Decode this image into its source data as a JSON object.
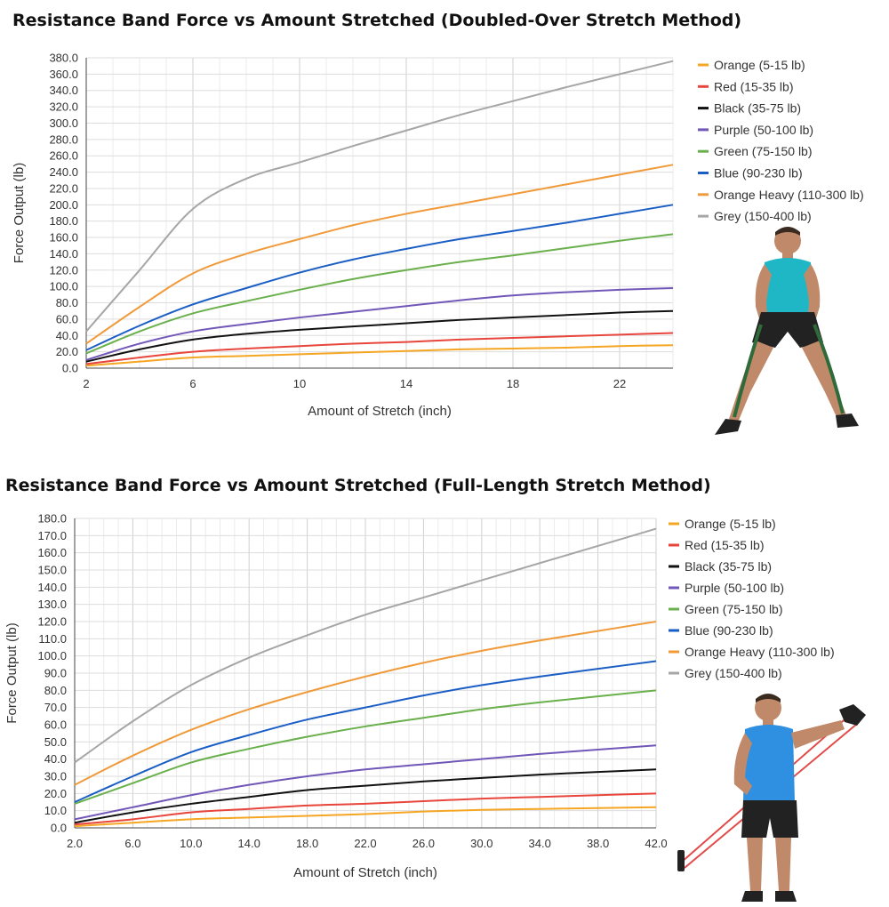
{
  "chart_data": [
    {
      "type": "line",
      "title": "Resistance Band Force vs Amount Stretched  (Doubled-Over Stretch Method)",
      "xlabel": "Amount of Stretch (inch)",
      "ylabel": "Force Output (lb)",
      "xlim": [
        2,
        24
      ],
      "ylim": [
        0,
        380
      ],
      "xticks": [
        2,
        6,
        10,
        14,
        18,
        22
      ],
      "xtick_labels": [
        "2",
        "6",
        "10",
        "14",
        "18",
        "22"
      ],
      "yticks": [
        0,
        20,
        40,
        60,
        80,
        100,
        120,
        140,
        160,
        180,
        200,
        220,
        240,
        260,
        280,
        300,
        320,
        340,
        360,
        380
      ],
      "ytick_labels": [
        "0.0",
        "20.0",
        "40.0",
        "60.0",
        "80.0",
        "100.0",
        "120.0",
        "140.0",
        "160.0",
        "180.0",
        "200.0",
        "220.0",
        "240.0",
        "260.0",
        "280.0",
        "300.0",
        "320.0",
        "340.0",
        "360.0",
        "380.0"
      ],
      "grid": true,
      "legend_position": "right",
      "x": [
        2,
        4,
        6,
        8,
        10,
        12,
        14,
        16,
        18,
        20,
        22,
        24
      ],
      "series": [
        {
          "name": "Orange (5-15 lb)",
          "color": "#f5a623",
          "values": [
            3,
            8,
            13,
            15,
            17,
            19,
            21,
            23,
            24,
            25,
            27,
            28
          ]
        },
        {
          "name": "Red (15-35 lb)",
          "color": "#e8453c",
          "values": [
            5,
            13,
            20,
            24,
            27,
            30,
            32,
            35,
            37,
            39,
            41,
            43
          ]
        },
        {
          "name": "Black (35-75 lb)",
          "color": "#111111",
          "values": [
            8,
            23,
            35,
            42,
            47,
            51,
            55,
            59,
            62,
            65,
            68,
            70
          ]
        },
        {
          "name": "Purple (50-100 lb)",
          "color": "#7158b8",
          "values": [
            10,
            30,
            45,
            54,
            62,
            69,
            76,
            83,
            89,
            93,
            96,
            98
          ]
        },
        {
          "name": "Green (75-150 lb)",
          "color": "#6ab04c",
          "values": [
            18,
            45,
            67,
            82,
            96,
            109,
            120,
            130,
            138,
            147,
            156,
            164
          ]
        },
        {
          "name": "Blue (90-230 lb)",
          "color": "#1a5ec5",
          "values": [
            22,
            52,
            78,
            98,
            117,
            133,
            146,
            158,
            168,
            178,
            189,
            200
          ]
        },
        {
          "name": "Orange Heavy (110-300 lb)",
          "color": "#f09a3a",
          "values": [
            30,
            75,
            116,
            140,
            158,
            175,
            189,
            201,
            213,
            225,
            237,
            249
          ]
        },
        {
          "name": "Grey (150-400 lb)",
          "color": "#a6a6a6",
          "values": [
            45,
            120,
            195,
            232,
            252,
            272,
            291,
            310,
            327,
            344,
            360,
            376
          ]
        }
      ]
    },
    {
      "type": "line",
      "title": "Resistance Band Force vs Amount Stretched  (Full-Length Stretch Method)",
      "xlabel": "Amount of Stretch (inch)",
      "ylabel": "Force Output (lb)",
      "xlim": [
        2,
        42
      ],
      "ylim": [
        0,
        180
      ],
      "xticks": [
        2,
        6,
        10,
        14,
        18,
        22,
        26,
        30,
        34,
        38,
        42
      ],
      "xtick_labels": [
        "2.0",
        "6.0",
        "10.0",
        "14.0",
        "18.0",
        "22.0",
        "26.0",
        "30.0",
        "34.0",
        "38.0",
        "42.0"
      ],
      "yticks": [
        0,
        10,
        20,
        30,
        40,
        50,
        60,
        70,
        80,
        90,
        100,
        110,
        120,
        130,
        140,
        150,
        160,
        170,
        180
      ],
      "ytick_labels": [
        "0.0",
        "10.0",
        "20.0",
        "30.0",
        "40.0",
        "50.0",
        "60.0",
        "70.0",
        "80.0",
        "90.0",
        "100.0",
        "110.0",
        "120.0",
        "130.0",
        "140.0",
        "150.0",
        "160.0",
        "170.0",
        "180.0"
      ],
      "grid": true,
      "legend_position": "right",
      "x": [
        2,
        6,
        10,
        14,
        18,
        22,
        26,
        30,
        34,
        38,
        42
      ],
      "series": [
        {
          "name": "Orange (5-15 lb)",
          "color": "#f5a623",
          "values": [
            1,
            3,
            5,
            6,
            7,
            8,
            9.5,
            10.5,
            11,
            11.5,
            12
          ]
        },
        {
          "name": "Red (15-35 lb)",
          "color": "#e8453c",
          "values": [
            2,
            5,
            9,
            11,
            13,
            14,
            15.5,
            17,
            18,
            19,
            20
          ]
        },
        {
          "name": "Black (35-75 lb)",
          "color": "#111111",
          "values": [
            3,
            9,
            14,
            18,
            22,
            24.5,
            27,
            29,
            31,
            32.5,
            34
          ]
        },
        {
          "name": "Purple (50-100 lb)",
          "color": "#7158b8",
          "values": [
            5,
            12,
            19,
            25,
            30,
            34,
            37,
            40,
            43,
            45.5,
            48
          ]
        },
        {
          "name": "Green (75-150 lb)",
          "color": "#6ab04c",
          "values": [
            14,
            26,
            38,
            46,
            53,
            59,
            64,
            69,
            73,
            76.5,
            80
          ]
        },
        {
          "name": "Blue (90-230 lb)",
          "color": "#1a5ec5",
          "values": [
            15,
            30,
            44,
            54,
            63,
            70,
            77,
            83,
            88,
            92.5,
            97
          ]
        },
        {
          "name": "Orange Heavy (110-300 lb)",
          "color": "#f09a3a",
          "values": [
            25,
            42,
            57,
            69,
            79,
            88,
            96,
            103,
            109,
            114.5,
            120
          ]
        },
        {
          "name": "Grey (150-400 lb)",
          "color": "#a6a6a6",
          "values": [
            38,
            62,
            83,
            99,
            112,
            124,
            134,
            144,
            154,
            164,
            174
          ]
        }
      ]
    }
  ]
}
